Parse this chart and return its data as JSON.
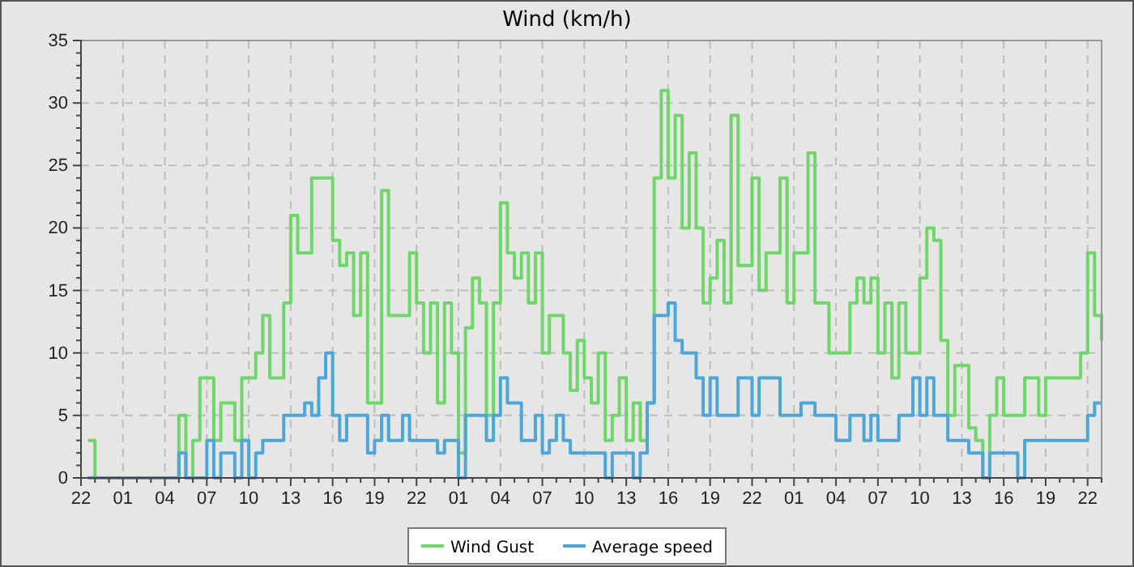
{
  "chart_data": {
    "type": "step",
    "title": "Wind (km/h)",
    "categories": [
      "22",
      null,
      null,
      null,
      null,
      null,
      "01",
      null,
      null,
      null,
      null,
      null,
      "04",
      null,
      null,
      null,
      null,
      null,
      "07",
      null,
      null,
      null,
      null,
      null,
      "10",
      null,
      null,
      null,
      null,
      null,
      "13",
      null,
      null,
      null,
      null,
      null,
      "16",
      null,
      null,
      null,
      null,
      null,
      "19",
      null,
      null,
      null,
      null,
      null,
      "22",
      null,
      null,
      null,
      null,
      null,
      "01",
      null,
      null,
      null,
      null,
      null,
      "04",
      null,
      null,
      null,
      null,
      null,
      "07",
      null,
      null,
      null,
      null,
      null,
      "10",
      null,
      null,
      null,
      null,
      null,
      "13",
      null,
      null,
      null,
      null,
      null,
      "16",
      null,
      null,
      null,
      null,
      null,
      "19",
      null,
      null,
      null,
      null,
      null,
      "22",
      null,
      null,
      null,
      null,
      null,
      "01",
      null,
      null,
      null,
      null,
      null,
      "04",
      null,
      null,
      null,
      null,
      null,
      "07",
      null,
      null,
      null,
      null,
      null,
      "10",
      null,
      null,
      null,
      null,
      null,
      "13",
      null,
      null,
      null,
      null,
      null,
      "16",
      null,
      null,
      null,
      null,
      null,
      "19",
      null,
      null,
      null,
      null,
      null,
      "22",
      null,
      null
    ],
    "ylim": [
      0,
      35
    ],
    "yticks": [
      0,
      {
        "value": 1,
        "label": null
      },
      {
        "value": 2,
        "label": null
      },
      {
        "value": 3,
        "label": null
      },
      {
        "value": 4,
        "label": null
      },
      5,
      {
        "value": 6,
        "label": null
      },
      {
        "value": 7,
        "label": null
      },
      {
        "value": 8,
        "label": null
      },
      {
        "value": 9,
        "label": null
      },
      10,
      {
        "value": 11,
        "label": null
      },
      {
        "value": 12,
        "label": null
      },
      {
        "value": 13,
        "label": null
      },
      {
        "value": 14,
        "label": null
      },
      15,
      {
        "value": 16,
        "label": null
      },
      {
        "value": 17,
        "label": null
      },
      {
        "value": 18,
        "label": null
      },
      {
        "value": 19,
        "label": null
      },
      20,
      {
        "value": 21,
        "label": null
      },
      {
        "value": 22,
        "label": null
      },
      {
        "value": 23,
        "label": null
      },
      {
        "value": 24,
        "label": null
      },
      25,
      {
        "value": 26,
        "label": null
      },
      {
        "value": 27,
        "label": null
      },
      {
        "value": 28,
        "label": null
      },
      {
        "value": 29,
        "label": null
      },
      30,
      {
        "value": 31,
        "label": null
      },
      {
        "value": 32,
        "label": null
      },
      {
        "value": 33,
        "label": null
      },
      {
        "value": 34,
        "label": null
      },
      35
    ],
    "grid": true,
    "legend": "bottom",
    "series": [
      {
        "name": "Wind Gust",
        "color": "#6fd66a",
        "values": [
          null,
          3,
          0,
          0,
          0,
          0,
          0,
          0,
          0,
          0,
          0,
          0,
          0,
          0,
          5,
          0,
          3,
          8,
          8,
          3,
          6,
          6,
          3,
          8,
          8,
          10,
          13,
          8,
          8,
          14,
          21,
          18,
          18,
          24,
          24,
          24,
          19,
          17,
          18,
          13,
          18,
          6,
          6,
          23,
          13,
          13,
          13,
          18,
          14,
          10,
          14,
          6,
          14,
          10,
          2,
          12,
          16,
          14,
          5,
          14,
          22,
          18,
          16,
          18,
          14,
          18,
          10,
          13,
          13,
          10,
          7,
          11,
          8,
          6,
          10,
          3,
          5,
          8,
          3,
          6,
          3,
          6,
          24,
          31,
          24,
          29,
          20,
          26,
          20,
          14,
          16,
          19,
          14,
          29,
          17,
          17,
          24,
          15,
          18,
          18,
          24,
          14,
          18,
          18,
          26,
          14,
          14,
          10,
          10,
          10,
          14,
          16,
          14,
          16,
          10,
          14,
          8,
          14,
          10,
          10,
          16,
          20,
          19,
          11,
          5,
          9,
          9,
          4,
          3,
          0,
          5,
          8,
          5,
          5,
          5,
          8,
          8,
          5,
          8,
          8,
          8,
          8,
          8,
          10,
          18,
          13,
          11
        ]
      },
      {
        "name": "Average speed",
        "color": "#4ea6d6",
        "values": [
          null,
          0,
          0,
          0,
          0,
          0,
          0,
          0,
          0,
          0,
          0,
          0,
          0,
          0,
          2,
          0,
          0,
          0,
          3,
          0,
          2,
          2,
          0,
          3,
          0,
          2,
          3,
          3,
          3,
          5,
          5,
          5,
          6,
          5,
          8,
          10,
          5,
          3,
          5,
          5,
          5,
          2,
          3,
          5,
          3,
          3,
          5,
          3,
          3,
          3,
          3,
          2,
          3,
          3,
          0,
          5,
          5,
          5,
          3,
          5,
          8,
          6,
          6,
          3,
          3,
          5,
          2,
          3,
          5,
          3,
          2,
          2,
          2,
          2,
          2,
          0,
          2,
          2,
          2,
          0,
          2,
          6,
          13,
          13,
          14,
          11,
          10,
          10,
          8,
          5,
          8,
          5,
          5,
          5,
          8,
          8,
          5,
          8,
          8,
          8,
          5,
          5,
          5,
          6,
          6,
          5,
          5,
          5,
          3,
          3,
          5,
          5,
          3,
          5,
          3,
          3,
          3,
          5,
          5,
          8,
          5,
          8,
          5,
          5,
          3,
          3,
          3,
          2,
          2,
          0,
          2,
          2,
          2,
          2,
          0,
          3,
          3,
          3,
          3,
          3,
          3,
          3,
          3,
          3,
          5,
          6,
          6
        ]
      }
    ]
  }
}
